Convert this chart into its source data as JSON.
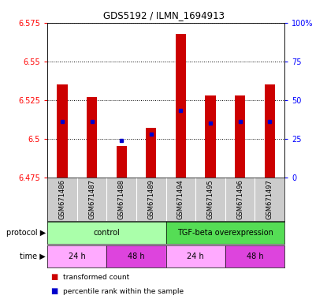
{
  "title": "GDS5192 / ILMN_1694913",
  "samples": [
    "GSM671486",
    "GSM671487",
    "GSM671488",
    "GSM671489",
    "GSM671494",
    "GSM671495",
    "GSM671496",
    "GSM671497"
  ],
  "bar_bottom": 6.475,
  "bar_tops": [
    6.535,
    6.527,
    6.495,
    6.507,
    6.568,
    6.528,
    6.528,
    6.535
  ],
  "percentile_values": [
    6.511,
    6.511,
    6.499,
    6.503,
    6.518,
    6.51,
    6.511,
    6.511
  ],
  "ylim_left": [
    6.475,
    6.575
  ],
  "yticks_left": [
    6.475,
    6.5,
    6.525,
    6.55,
    6.575
  ],
  "ytick_labels_left": [
    "6.475",
    "6.5",
    "6.525",
    "6.55",
    "6.575"
  ],
  "yticks_right": [
    0,
    25,
    50,
    75,
    100
  ],
  "ytick_labels_right": [
    "0",
    "25",
    "50",
    "75",
    "100%"
  ],
  "bar_color": "#cc0000",
  "percentile_color": "#0000cc",
  "protocol_groups": [
    {
      "label": "control",
      "start": 0,
      "end": 4,
      "color": "#aaffaa"
    },
    {
      "label": "TGF-beta overexpression",
      "start": 4,
      "end": 8,
      "color": "#55dd55"
    }
  ],
  "time_groups": [
    {
      "label": "24 h",
      "start": 0,
      "end": 2,
      "color": "#ffaaff"
    },
    {
      "label": "48 h",
      "start": 2,
      "end": 4,
      "color": "#dd44dd"
    },
    {
      "label": "24 h",
      "start": 4,
      "end": 6,
      "color": "#ffaaff"
    },
    {
      "label": "48 h",
      "start": 6,
      "end": 8,
      "color": "#dd44dd"
    }
  ],
  "legend_items": [
    {
      "label": "transformed count",
      "color": "#cc0000"
    },
    {
      "label": "percentile rank within the sample",
      "color": "#0000cc"
    }
  ],
  "sample_area_bg": "#cccccc",
  "plot_bg": "#ffffff",
  "bar_width": 0.35
}
